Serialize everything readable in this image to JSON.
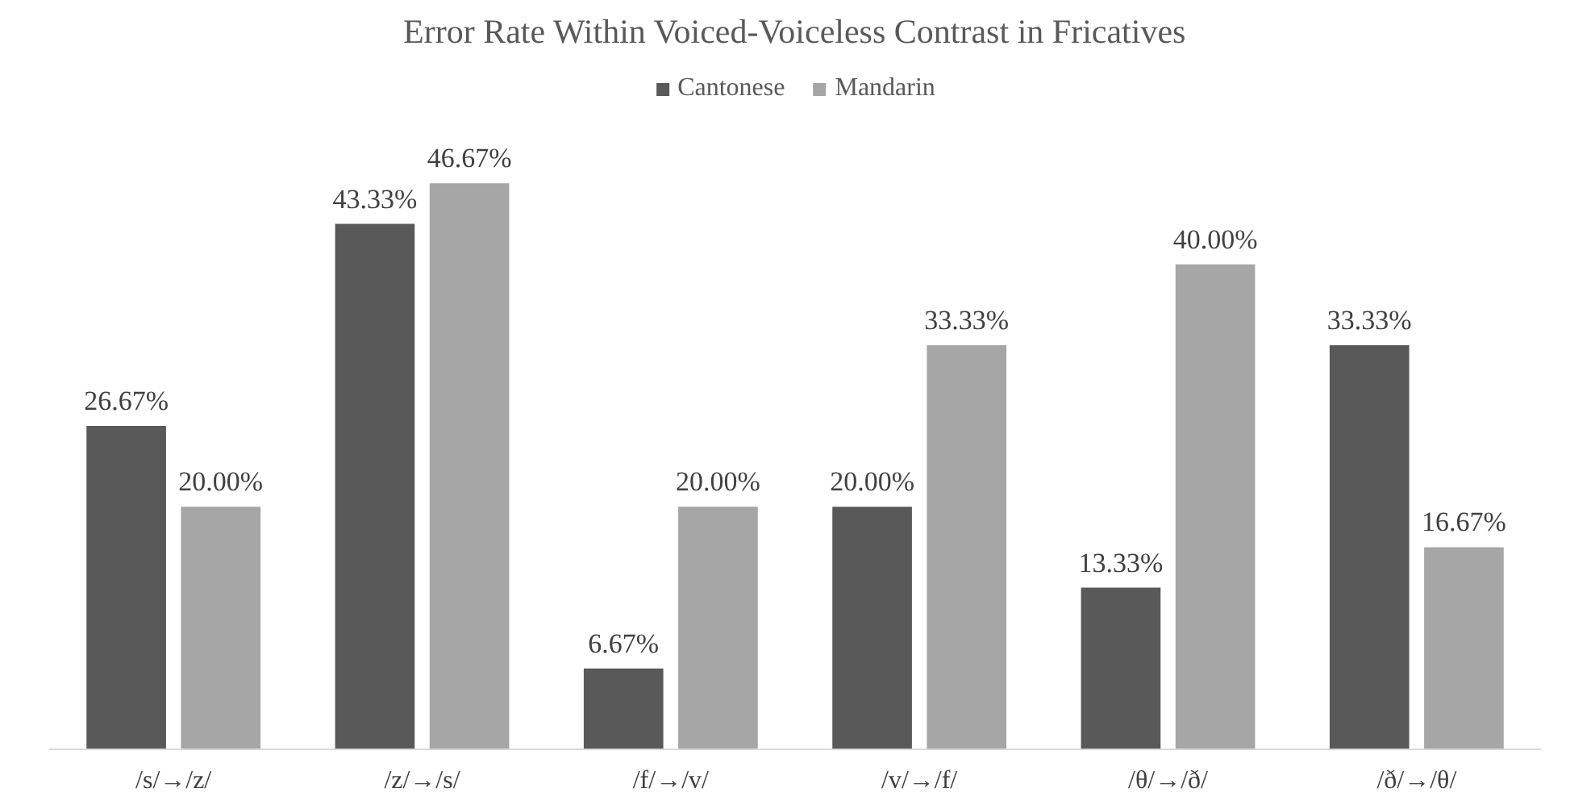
{
  "chart_data": {
    "type": "bar",
    "title": "Error Rate Within Voiced-Voiceless Contrast in Fricatives",
    "categories": [
      "/s/→/z/",
      "/z/→/s/",
      "/f/→/v/",
      "/v/→/f/",
      "/θ/→/ð/",
      "/ð/→/θ/"
    ],
    "series": [
      {
        "name": "Cantonese",
        "color": "#595959",
        "values": [
          26.67,
          43.33,
          6.67,
          20.0,
          13.33,
          33.33
        ],
        "value_labels": [
          "26.67%",
          "43.33%",
          "6.67%",
          "20.00%",
          "13.33%",
          "33.33%"
        ]
      },
      {
        "name": "Mandarin",
        "color": "#a6a6a6",
        "values": [
          20.0,
          46.67,
          20.0,
          33.33,
          40.0,
          16.67
        ],
        "value_labels": [
          "20.00%",
          "46.67%",
          "20.00%",
          "33.33%",
          "40.00%",
          "16.67%"
        ]
      }
    ],
    "legend": "top"
  }
}
